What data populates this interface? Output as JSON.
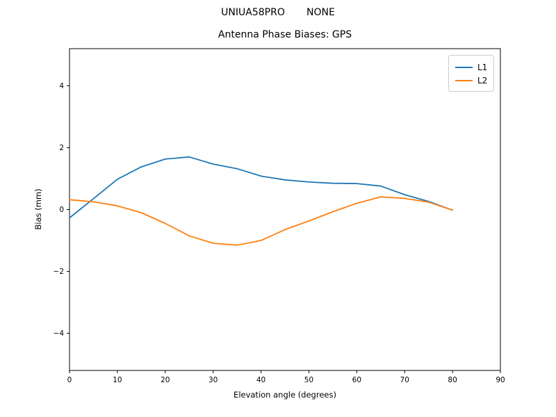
{
  "header": {
    "suptitle": "UNIUA58PRO       NONE"
  },
  "chart_data": {
    "type": "line",
    "title": "Antenna Phase Biases: GPS",
    "xlabel": "Elevation angle (degrees)",
    "ylabel": "Bias (mm)",
    "xlim": [
      0,
      90
    ],
    "ylim": [
      -5.2,
      5.2
    ],
    "xticks": [
      0,
      10,
      20,
      30,
      40,
      50,
      60,
      70,
      80,
      90
    ],
    "yticks": [
      -4,
      -2,
      0,
      2,
      4
    ],
    "grid": false,
    "legend_position": "upper right",
    "x": [
      0,
      5,
      10,
      15,
      20,
      25,
      30,
      35,
      40,
      45,
      50,
      55,
      60,
      65,
      70,
      75,
      80
    ],
    "series": [
      {
        "name": "L1",
        "color": "#1f77b4",
        "values": [
          -0.27,
          0.35,
          0.98,
          1.38,
          1.63,
          1.7,
          1.47,
          1.32,
          1.08,
          0.96,
          0.89,
          0.85,
          0.84,
          0.76,
          0.48,
          0.26,
          -0.02
        ]
      },
      {
        "name": "L2",
        "color": "#ff7f0e",
        "values": [
          0.32,
          0.25,
          0.12,
          -0.1,
          -0.45,
          -0.85,
          -1.09,
          -1.15,
          -1.0,
          -0.65,
          -0.37,
          -0.07,
          0.2,
          0.41,
          0.36,
          0.24,
          -0.02
        ]
      }
    ]
  }
}
